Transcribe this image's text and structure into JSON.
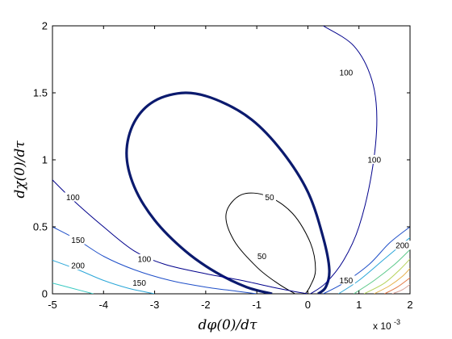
{
  "chart_data": {
    "type": "contour",
    "xlim": [
      -5,
      2
    ],
    "ylim": [
      0,
      2
    ],
    "x_ticks": [
      "-5",
      "-4",
      "-3",
      "-2",
      "-1",
      "0",
      "1",
      "2"
    ],
    "y_ticks": [
      "0",
      "0.5",
      "1",
      "1.5",
      "2"
    ],
    "x_multiplier": "x 10",
    "x_multiplier_exp": "-3",
    "xlabel": "dφ(0)/dτ",
    "ylabel": "dχ(0)/dτ",
    "grid": false,
    "highlight_color": "#0b1a6e",
    "contours": [
      {
        "level": "0",
        "color": "#0b1a6e",
        "style": "bold",
        "points": [
          [
            -0.7,
            0.0
          ],
          [
            -1.2,
            0.05
          ],
          [
            -1.8,
            0.16
          ],
          [
            -2.4,
            0.32
          ],
          [
            -3.0,
            0.55
          ],
          [
            -3.4,
            0.8
          ],
          [
            -3.55,
            1.05
          ],
          [
            -3.4,
            1.28
          ],
          [
            -3.0,
            1.44
          ],
          [
            -2.4,
            1.5
          ],
          [
            -1.8,
            1.45
          ],
          [
            -1.1,
            1.3
          ],
          [
            -0.5,
            1.06
          ],
          [
            0.0,
            0.76
          ],
          [
            0.3,
            0.42
          ],
          [
            0.42,
            0.18
          ],
          [
            0.35,
            0.05
          ],
          [
            0.2,
            0.0
          ]
        ]
      },
      {
        "level": "50",
        "color": "#000000",
        "points": [
          [
            -0.25,
            0.0
          ],
          [
            -0.6,
            0.08
          ],
          [
            -1.0,
            0.2
          ],
          [
            -1.45,
            0.4
          ],
          [
            -1.6,
            0.6
          ],
          [
            -1.3,
            0.74
          ],
          [
            -0.8,
            0.73
          ],
          [
            -0.3,
            0.6
          ],
          [
            0.05,
            0.38
          ],
          [
            0.15,
            0.18
          ],
          [
            0.05,
            0.06
          ],
          [
            -0.05,
            0.0
          ]
        ],
        "label_at": [
          [
            -0.9,
            0.28
          ],
          [
            -0.75,
            0.72
          ]
        ]
      },
      {
        "level": "100",
        "color": "#00008b",
        "points": [
          [
            -5.0,
            0.85
          ],
          [
            -4.6,
            0.7
          ],
          [
            -4.0,
            0.5
          ],
          [
            -3.4,
            0.32
          ],
          [
            -2.8,
            0.22
          ],
          [
            -2.0,
            0.15
          ],
          [
            -1.3,
            0.1
          ],
          [
            -0.7,
            0.05
          ],
          [
            -0.3,
            0.02
          ],
          [
            0.0,
            0.0
          ]
        ],
        "label_at": [
          [
            -4.6,
            0.72
          ],
          [
            -3.2,
            0.26
          ]
        ]
      },
      {
        "level": "100",
        "color": "#00008b",
        "points": [
          [
            0.05,
            0.0
          ],
          [
            0.35,
            0.08
          ],
          [
            0.7,
            0.25
          ],
          [
            1.0,
            0.5
          ],
          [
            1.25,
            0.9
          ],
          [
            1.35,
            1.3
          ],
          [
            1.25,
            1.6
          ],
          [
            0.9,
            1.85
          ],
          [
            0.3,
            2.0
          ]
        ],
        "label_at": [
          [
            1.3,
            1.0
          ],
          [
            0.75,
            1.65
          ]
        ]
      },
      {
        "level": "150",
        "color": "#1f4fc8",
        "points": [
          [
            -5.0,
            0.5
          ],
          [
            -4.5,
            0.4
          ],
          [
            -4.0,
            0.28
          ],
          [
            -3.4,
            0.18
          ],
          [
            -2.7,
            0.1
          ],
          [
            -2.0,
            0.05
          ],
          [
            -1.4,
            0.02
          ],
          [
            -1.0,
            0.0
          ]
        ],
        "label_at": [
          [
            -4.5,
            0.4
          ],
          [
            -3.3,
            0.08
          ]
        ]
      },
      {
        "level": "150",
        "color": "#1f4fc8",
        "points": [
          [
            0.3,
            0.0
          ],
          [
            0.7,
            0.08
          ],
          [
            1.2,
            0.22
          ],
          [
            1.6,
            0.38
          ],
          [
            2.0,
            0.5
          ]
        ],
        "label_at": [
          [
            0.75,
            0.1
          ]
        ]
      },
      {
        "level": "200",
        "color": "#2aa6d8",
        "points": [
          [
            -5.0,
            0.25
          ],
          [
            -4.5,
            0.18
          ],
          [
            -4.0,
            0.1
          ],
          [
            -3.5,
            0.04
          ],
          [
            -3.0,
            0.0
          ]
        ],
        "label_at": [
          [
            -4.5,
            0.21
          ]
        ]
      },
      {
        "level": "200",
        "color": "#2aa6d8",
        "points": [
          [
            0.6,
            0.0
          ],
          [
            1.0,
            0.1
          ],
          [
            1.5,
            0.26
          ],
          [
            2.0,
            0.42
          ]
        ],
        "label_at": [
          [
            1.85,
            0.36
          ]
        ]
      },
      {
        "level": "",
        "color": "#39c9c2",
        "points": [
          [
            -5.0,
            0.08
          ],
          [
            -4.6,
            0.04
          ],
          [
            -4.2,
            0.0
          ]
        ]
      },
      {
        "level": "",
        "color": "#5cc98a",
        "points": [
          [
            0.9,
            0.0
          ],
          [
            1.3,
            0.1
          ],
          [
            1.7,
            0.22
          ],
          [
            2.0,
            0.33
          ]
        ]
      },
      {
        "level": "",
        "color": "#b6d35c",
        "points": [
          [
            1.1,
            0.0
          ],
          [
            1.5,
            0.08
          ],
          [
            1.8,
            0.18
          ],
          [
            2.0,
            0.26
          ]
        ]
      },
      {
        "level": "",
        "color": "#e6b04a",
        "points": [
          [
            1.3,
            0.0
          ],
          [
            1.6,
            0.06
          ],
          [
            1.85,
            0.13
          ],
          [
            2.0,
            0.19
          ]
        ]
      },
      {
        "level": "",
        "color": "#e37a47",
        "points": [
          [
            1.5,
            0.0
          ],
          [
            1.75,
            0.05
          ],
          [
            2.0,
            0.12
          ]
        ]
      },
      {
        "level": "",
        "color": "#d9a39a",
        "points": [
          [
            1.65,
            0.0
          ],
          [
            1.85,
            0.03
          ],
          [
            2.0,
            0.07
          ]
        ]
      }
    ]
  }
}
